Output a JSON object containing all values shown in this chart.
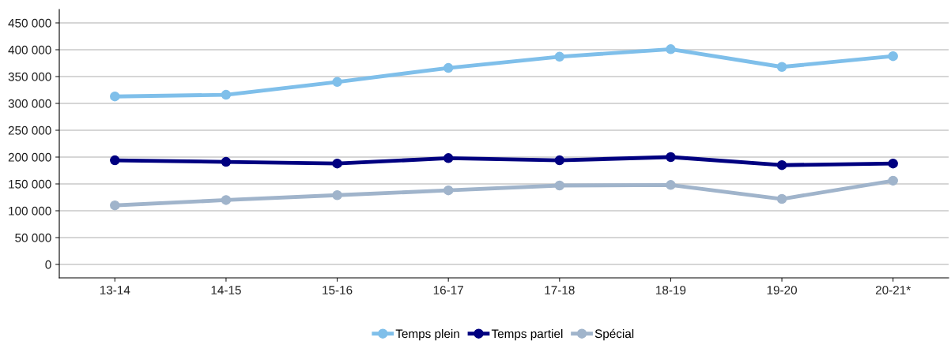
{
  "chart_data": {
    "type": "line",
    "categories": [
      "13-14",
      "14-15",
      "15-16",
      "16-17",
      "17-18",
      "18-19",
      "19-20",
      "20-21*"
    ],
    "series": [
      {
        "name": "Temps plein",
        "color": "#7fbfea",
        "values": [
          313000,
          316000,
          340000,
          366000,
          387000,
          401000,
          368000,
          388000
        ]
      },
      {
        "name": "Temps partiel",
        "color": "#000080",
        "values": [
          194000,
          191000,
          188000,
          198000,
          194000,
          200000,
          185000,
          188000
        ]
      },
      {
        "name": "Spécial",
        "color": "#a0b4cb",
        "values": [
          110000,
          120000,
          129000,
          138000,
          147000,
          148000,
          122000,
          156000
        ]
      }
    ],
    "ylim": [
      -25000,
      475000
    ],
    "yticks": [
      {
        "value": 0,
        "label": "0"
      },
      {
        "value": 50000,
        "label": "50 000"
      },
      {
        "value": 100000,
        "label": "100 000"
      },
      {
        "value": 150000,
        "label": "150 000"
      },
      {
        "value": 200000,
        "label": "200 000"
      },
      {
        "value": 250000,
        "label": "250 000"
      },
      {
        "value": 300000,
        "label": "300 000"
      },
      {
        "value": 350000,
        "label": "350 000"
      },
      {
        "value": 400000,
        "label": "400 000"
      },
      {
        "value": 450000,
        "label": "450 000"
      }
    ],
    "grid": "y",
    "legend": "bottom",
    "marker": "circle",
    "line_style": "solid"
  }
}
